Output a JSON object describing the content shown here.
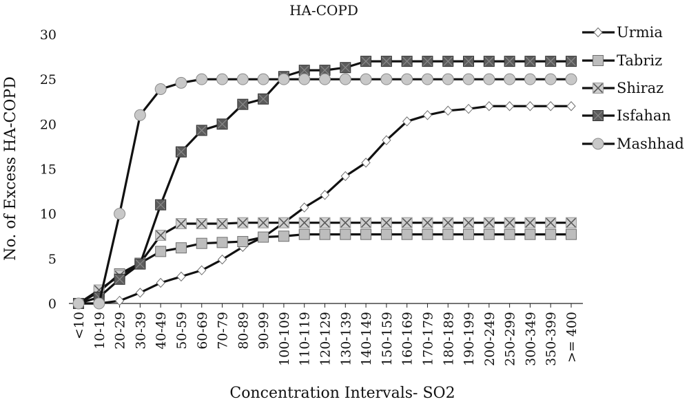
{
  "chart_data": {
    "type": "line",
    "title": "HA-COPD",
    "xlabel": "Concentration Intervals- SO2",
    "ylabel": "No. of Excess HA-COPD",
    "ylim": [
      0,
      30
    ],
    "yticks": [
      0,
      5,
      10,
      15,
      20,
      25,
      30
    ],
    "grid": false,
    "legend_position": "right",
    "categories": [
      "<10",
      "10-19",
      "20-29",
      "30-39",
      "40-49",
      "50-59",
      "60-69",
      "70-79",
      "80-89",
      "90-99",
      "100-109",
      "110-119",
      "120-129",
      "130-139",
      "140-149",
      "150-159",
      "160-169",
      "170-179",
      "180-189",
      "190-199",
      "200-249",
      "250-299",
      "300-349",
      "350-399",
      ">= 400"
    ],
    "series": [
      {
        "name": "Urmia",
        "marker": "diamond",
        "values": [
          0,
          0,
          0.3,
          1.2,
          2.3,
          3.0,
          3.7,
          4.9,
          6.3,
          7.4,
          9.0,
          10.7,
          12.1,
          14.2,
          15.7,
          18.2,
          20.3,
          21.0,
          21.5,
          21.7,
          22.0,
          22.0,
          22.0,
          22.0,
          22.0
        ]
      },
      {
        "name": "Tabriz",
        "marker": "square",
        "values": [
          0,
          1.3,
          3.3,
          4.5,
          5.8,
          6.2,
          6.7,
          6.8,
          6.9,
          7.4,
          7.5,
          7.7,
          7.7,
          7.7,
          7.7,
          7.7,
          7.7,
          7.7,
          7.7,
          7.7,
          7.7,
          7.7,
          7.7,
          7.7,
          7.7
        ]
      },
      {
        "name": "Shiraz",
        "marker": "x-square",
        "values": [
          0,
          1.5,
          3.1,
          4.5,
          7.6,
          8.9,
          8.9,
          8.9,
          9.0,
          9.0,
          9.0,
          9.0,
          9.0,
          9.0,
          9.0,
          9.0,
          9.0,
          9.0,
          9.0,
          9.0,
          9.0,
          9.0,
          9.0,
          9.0,
          9.0
        ]
      },
      {
        "name": "Isfahan",
        "marker": "dark-square",
        "values": [
          0,
          0.7,
          2.7,
          4.4,
          11.0,
          16.9,
          19.3,
          20.0,
          22.2,
          22.8,
          25.3,
          26.0,
          26.0,
          26.3,
          27.0,
          27.0,
          27.0,
          27.0,
          27.0,
          27.0,
          27.0,
          27.0,
          27.0,
          27.0,
          27.0
        ]
      },
      {
        "name": "Mashhad",
        "marker": "circle",
        "values": [
          0,
          0,
          10.0,
          21.0,
          23.9,
          24.6,
          25.0,
          25.0,
          25.0,
          25.0,
          25.0,
          25.0,
          25.0,
          25.0,
          25.0,
          25.0,
          25.0,
          25.0,
          25.0,
          25.0,
          25.0,
          25.0,
          25.0,
          25.0,
          25.0
        ]
      }
    ]
  }
}
